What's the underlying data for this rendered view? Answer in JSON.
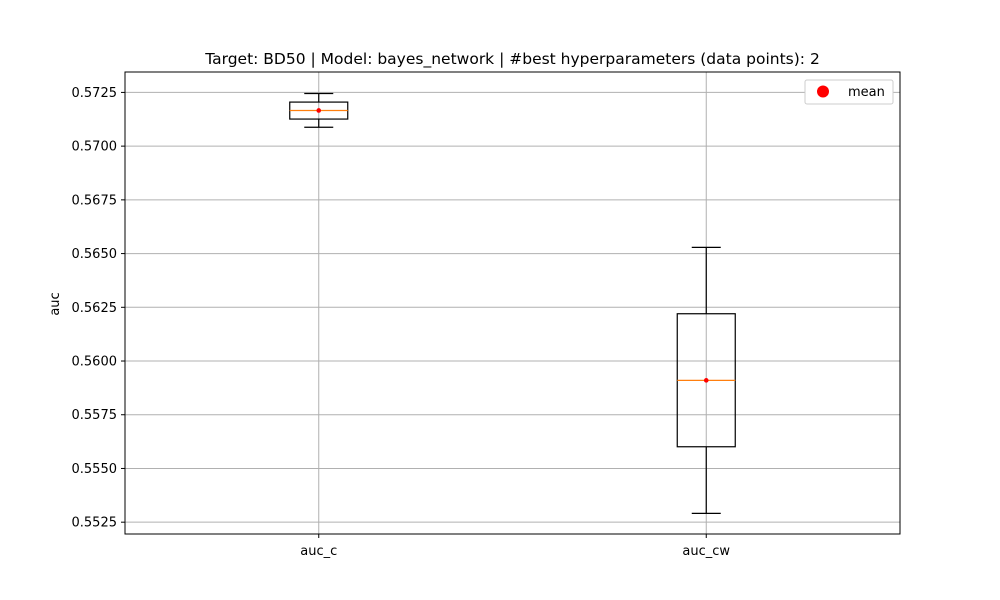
{
  "chart_data": {
    "type": "boxplot",
    "title": "Target: BD50 | Model: bayes_network | #best hyperparameters (data points): 2",
    "xlabel": "",
    "ylabel": "auc",
    "ylim": [
      0.55195,
      0.57345
    ],
    "yticks": [
      "0.5525",
      "0.5550",
      "0.5575",
      "0.5600",
      "0.5625",
      "0.5650",
      "0.5675",
      "0.5700",
      "0.5725"
    ],
    "grid": true,
    "legend": {
      "position": "top-right",
      "entries": [
        {
          "label": "mean",
          "marker": "circle",
          "color": "#ff0000"
        }
      ]
    },
    "categories": [
      "auc_c",
      "auc_cw"
    ],
    "boxes": [
      {
        "label": "auc_c",
        "whisker_low": 0.57088,
        "q1": 0.57126,
        "median": 0.57166,
        "q3": 0.57205,
        "whisker_high": 0.57245,
        "mean": 0.57166
      },
      {
        "label": "auc_cw",
        "whisker_low": 0.55291,
        "q1": 0.55601,
        "median": 0.5591,
        "q3": 0.5622,
        "whisker_high": 0.56529,
        "mean": 0.5591
      }
    ],
    "colors": {
      "box": "#000000",
      "median": "#ff7f0e",
      "mean": "#ff0000",
      "grid": "#b0b0b0"
    }
  }
}
